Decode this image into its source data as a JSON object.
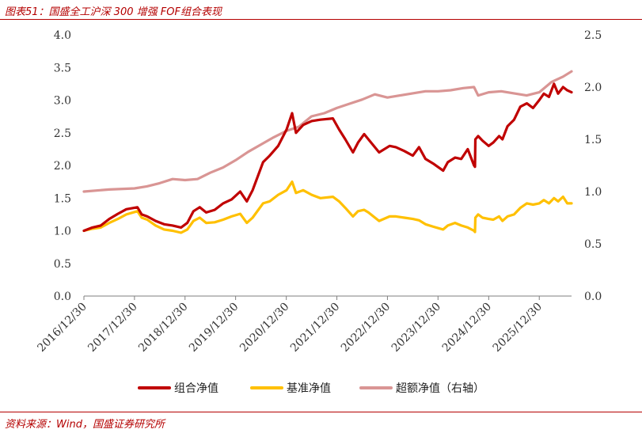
{
  "title": "图表51：国盛全工沪深 300 增强 FOF组合表现",
  "source": "资料来源：Wind，国盛证券研究所",
  "colors": {
    "combo": "#c00000",
    "benchmark": "#ffc000",
    "excess": "#d99594",
    "text": "#333333",
    "accent": "#b40000"
  },
  "chart_data": {
    "type": "line",
    "title": "",
    "xlabel": "",
    "ylabel": "",
    "y_left": {
      "min": 0.0,
      "max": 4.0,
      "ticks": [
        "0.0",
        "0.5",
        "1.0",
        "1.5",
        "2.0",
        "2.5",
        "3.0",
        "3.5",
        "4.0"
      ]
    },
    "y_right": {
      "min": 0.0,
      "max": 2.5,
      "ticks": [
        "0.0",
        "0.5",
        "1.0",
        "1.5",
        "2.0",
        "2.5"
      ]
    },
    "x_range": [
      "2016-12-30",
      "2026-08-20"
    ],
    "x_ticks": [
      "2016/12/30",
      "2017/12/30",
      "2018/12/30",
      "2019/12/30",
      "2020/12/30",
      "2021/12/30",
      "2022/12/30",
      "2023/12/30",
      "2024/12/30",
      "2025/12/30"
    ],
    "legend_position": "bottom-center",
    "grid": false,
    "series": [
      {
        "name": "组合净值",
        "axis": "left",
        "color": "#c00000",
        "points": [
          [
            "2016-12-30",
            1.0
          ],
          [
            "2017-03-01",
            1.05
          ],
          [
            "2017-05-01",
            1.08
          ],
          [
            "2017-07-01",
            1.18
          ],
          [
            "2017-09-01",
            1.26
          ],
          [
            "2017-11-01",
            1.33
          ],
          [
            "2018-01-20",
            1.36
          ],
          [
            "2018-02-20",
            1.25
          ],
          [
            "2018-04-01",
            1.22
          ],
          [
            "2018-06-01",
            1.15
          ],
          [
            "2018-08-01",
            1.1
          ],
          [
            "2018-10-01",
            1.08
          ],
          [
            "2018-12-01",
            1.05
          ],
          [
            "2019-01-15",
            1.12
          ],
          [
            "2019-03-01",
            1.3
          ],
          [
            "2019-04-15",
            1.36
          ],
          [
            "2019-06-01",
            1.28
          ],
          [
            "2019-08-01",
            1.32
          ],
          [
            "2019-10-01",
            1.42
          ],
          [
            "2019-12-01",
            1.48
          ],
          [
            "2020-02-01",
            1.6
          ],
          [
            "2020-03-20",
            1.45
          ],
          [
            "2020-05-01",
            1.62
          ],
          [
            "2020-07-15",
            2.05
          ],
          [
            "2020-09-01",
            2.15
          ],
          [
            "2020-11-01",
            2.3
          ],
          [
            "2021-01-01",
            2.55
          ],
          [
            "2021-02-10",
            2.8
          ],
          [
            "2021-03-10",
            2.5
          ],
          [
            "2021-05-01",
            2.62
          ],
          [
            "2021-07-01",
            2.68
          ],
          [
            "2021-09-01",
            2.7
          ],
          [
            "2021-12-01",
            2.72
          ],
          [
            "2022-01-15",
            2.55
          ],
          [
            "2022-03-01",
            2.4
          ],
          [
            "2022-04-25",
            2.2
          ],
          [
            "2022-06-01",
            2.35
          ],
          [
            "2022-07-15",
            2.48
          ],
          [
            "2022-08-15",
            2.4
          ],
          [
            "2022-10-31",
            2.2
          ],
          [
            "2023-01-15",
            2.3
          ],
          [
            "2023-03-01",
            2.28
          ],
          [
            "2023-05-01",
            2.22
          ],
          [
            "2023-07-01",
            2.15
          ],
          [
            "2023-08-15",
            2.28
          ],
          [
            "2023-10-01",
            2.1
          ],
          [
            "2023-12-01",
            2.02
          ],
          [
            "2024-02-05",
            1.92
          ],
          [
            "2024-03-10",
            2.05
          ],
          [
            "2024-05-01",
            2.12
          ],
          [
            "2024-06-15",
            2.1
          ],
          [
            "2024-08-01",
            2.25
          ],
          [
            "2024-09-15",
            2.0
          ],
          [
            "2024-09-22",
            1.98
          ],
          [
            "2024-09-25",
            2.4
          ],
          [
            "2024-10-15",
            2.45
          ],
          [
            "2024-11-15",
            2.38
          ],
          [
            "2024-12-30",
            2.3
          ],
          [
            "2025-02-01",
            2.35
          ],
          [
            "2025-03-15",
            2.45
          ],
          [
            "2025-04-08",
            2.4
          ],
          [
            "2025-05-15",
            2.6
          ],
          [
            "2025-07-01",
            2.7
          ],
          [
            "2025-08-15",
            2.9
          ],
          [
            "2025-10-01",
            2.95
          ],
          [
            "2025-11-15",
            2.88
          ],
          [
            "2025-12-30",
            3.0
          ],
          [
            "2026-02-01",
            3.1
          ],
          [
            "2026-03-10",
            3.05
          ],
          [
            "2026-04-15",
            3.25
          ],
          [
            "2026-05-15",
            3.1
          ],
          [
            "2026-06-20",
            3.2
          ],
          [
            "2026-07-20",
            3.15
          ],
          [
            "2026-08-20",
            3.12
          ]
        ]
      },
      {
        "name": "基准净值",
        "axis": "left",
        "color": "#ffc000",
        "points": [
          [
            "2016-12-30",
            1.0
          ],
          [
            "2017-03-01",
            1.03
          ],
          [
            "2017-05-01",
            1.05
          ],
          [
            "2017-07-01",
            1.12
          ],
          [
            "2017-09-01",
            1.18
          ],
          [
            "2017-11-01",
            1.25
          ],
          [
            "2018-01-20",
            1.3
          ],
          [
            "2018-02-20",
            1.2
          ],
          [
            "2018-04-01",
            1.17
          ],
          [
            "2018-06-01",
            1.08
          ],
          [
            "2018-08-01",
            1.02
          ],
          [
            "2018-10-01",
            1.0
          ],
          [
            "2018-12-01",
            0.97
          ],
          [
            "2019-01-15",
            1.02
          ],
          [
            "2019-03-01",
            1.15
          ],
          [
            "2019-04-15",
            1.2
          ],
          [
            "2019-06-01",
            1.12
          ],
          [
            "2019-08-01",
            1.13
          ],
          [
            "2019-10-01",
            1.17
          ],
          [
            "2019-12-01",
            1.22
          ],
          [
            "2020-02-01",
            1.26
          ],
          [
            "2020-03-20",
            1.12
          ],
          [
            "2020-05-01",
            1.2
          ],
          [
            "2020-07-15",
            1.42
          ],
          [
            "2020-09-01",
            1.45
          ],
          [
            "2020-11-01",
            1.55
          ],
          [
            "2021-01-01",
            1.62
          ],
          [
            "2021-02-10",
            1.75
          ],
          [
            "2021-03-10",
            1.58
          ],
          [
            "2021-05-01",
            1.62
          ],
          [
            "2021-07-01",
            1.55
          ],
          [
            "2021-09-01",
            1.5
          ],
          [
            "2021-12-01",
            1.52
          ],
          [
            "2022-01-15",
            1.45
          ],
          [
            "2022-03-01",
            1.35
          ],
          [
            "2022-04-25",
            1.22
          ],
          [
            "2022-06-01",
            1.3
          ],
          [
            "2022-07-15",
            1.32
          ],
          [
            "2022-08-15",
            1.28
          ],
          [
            "2022-10-31",
            1.15
          ],
          [
            "2023-01-15",
            1.22
          ],
          [
            "2023-03-01",
            1.22
          ],
          [
            "2023-05-01",
            1.2
          ],
          [
            "2023-07-01",
            1.18
          ],
          [
            "2023-08-15",
            1.16
          ],
          [
            "2023-10-01",
            1.1
          ],
          [
            "2023-12-01",
            1.06
          ],
          [
            "2024-02-05",
            1.02
          ],
          [
            "2024-03-10",
            1.08
          ],
          [
            "2024-05-01",
            1.12
          ],
          [
            "2024-06-15",
            1.08
          ],
          [
            "2024-08-01",
            1.05
          ],
          [
            "2024-09-15",
            1.0
          ],
          [
            "2024-09-22",
            0.98
          ],
          [
            "2024-09-25",
            1.2
          ],
          [
            "2024-10-15",
            1.25
          ],
          [
            "2024-11-15",
            1.2
          ],
          [
            "2024-12-30",
            1.18
          ],
          [
            "2025-02-01",
            1.17
          ],
          [
            "2025-03-15",
            1.22
          ],
          [
            "2025-04-08",
            1.15
          ],
          [
            "2025-05-15",
            1.22
          ],
          [
            "2025-07-01",
            1.25
          ],
          [
            "2025-08-15",
            1.35
          ],
          [
            "2025-10-01",
            1.42
          ],
          [
            "2025-11-15",
            1.4
          ],
          [
            "2025-12-30",
            1.42
          ],
          [
            "2026-02-01",
            1.47
          ],
          [
            "2026-03-10",
            1.42
          ],
          [
            "2026-04-15",
            1.5
          ],
          [
            "2026-05-15",
            1.45
          ],
          [
            "2026-06-20",
            1.52
          ],
          [
            "2026-07-20",
            1.42
          ],
          [
            "2026-08-20",
            1.42
          ]
        ]
      },
      {
        "name": "超额净值（右轴）",
        "axis": "right",
        "color": "#d99594",
        "points": [
          [
            "2016-12-30",
            1.0
          ],
          [
            "2017-06-30",
            1.02
          ],
          [
            "2017-12-30",
            1.03
          ],
          [
            "2018-03-30",
            1.05
          ],
          [
            "2018-06-30",
            1.08
          ],
          [
            "2018-10-01",
            1.12
          ],
          [
            "2018-12-30",
            1.11
          ],
          [
            "2019-03-30",
            1.12
          ],
          [
            "2019-06-30",
            1.18
          ],
          [
            "2019-09-30",
            1.23
          ],
          [
            "2019-12-30",
            1.3
          ],
          [
            "2020-03-30",
            1.38
          ],
          [
            "2020-06-30",
            1.45
          ],
          [
            "2020-09-30",
            1.52
          ],
          [
            "2020-12-30",
            1.58
          ],
          [
            "2021-03-30",
            1.62
          ],
          [
            "2021-06-30",
            1.72
          ],
          [
            "2021-09-30",
            1.75
          ],
          [
            "2021-12-30",
            1.8
          ],
          [
            "2022-03-30",
            1.84
          ],
          [
            "2022-06-30",
            1.88
          ],
          [
            "2022-09-30",
            1.93
          ],
          [
            "2022-12-30",
            1.9
          ],
          [
            "2023-03-30",
            1.92
          ],
          [
            "2023-06-30",
            1.94
          ],
          [
            "2023-09-30",
            1.96
          ],
          [
            "2023-12-30",
            1.96
          ],
          [
            "2024-03-30",
            1.97
          ],
          [
            "2024-06-30",
            1.99
          ],
          [
            "2024-09-15",
            2.0
          ],
          [
            "2024-10-15",
            1.92
          ],
          [
            "2024-12-30",
            1.95
          ],
          [
            "2025-03-30",
            1.96
          ],
          [
            "2025-06-30",
            1.94
          ],
          [
            "2025-09-30",
            1.92
          ],
          [
            "2025-12-30",
            1.95
          ],
          [
            "2026-03-30",
            2.05
          ],
          [
            "2026-06-20",
            2.1
          ],
          [
            "2026-08-20",
            2.15
          ]
        ]
      }
    ]
  }
}
